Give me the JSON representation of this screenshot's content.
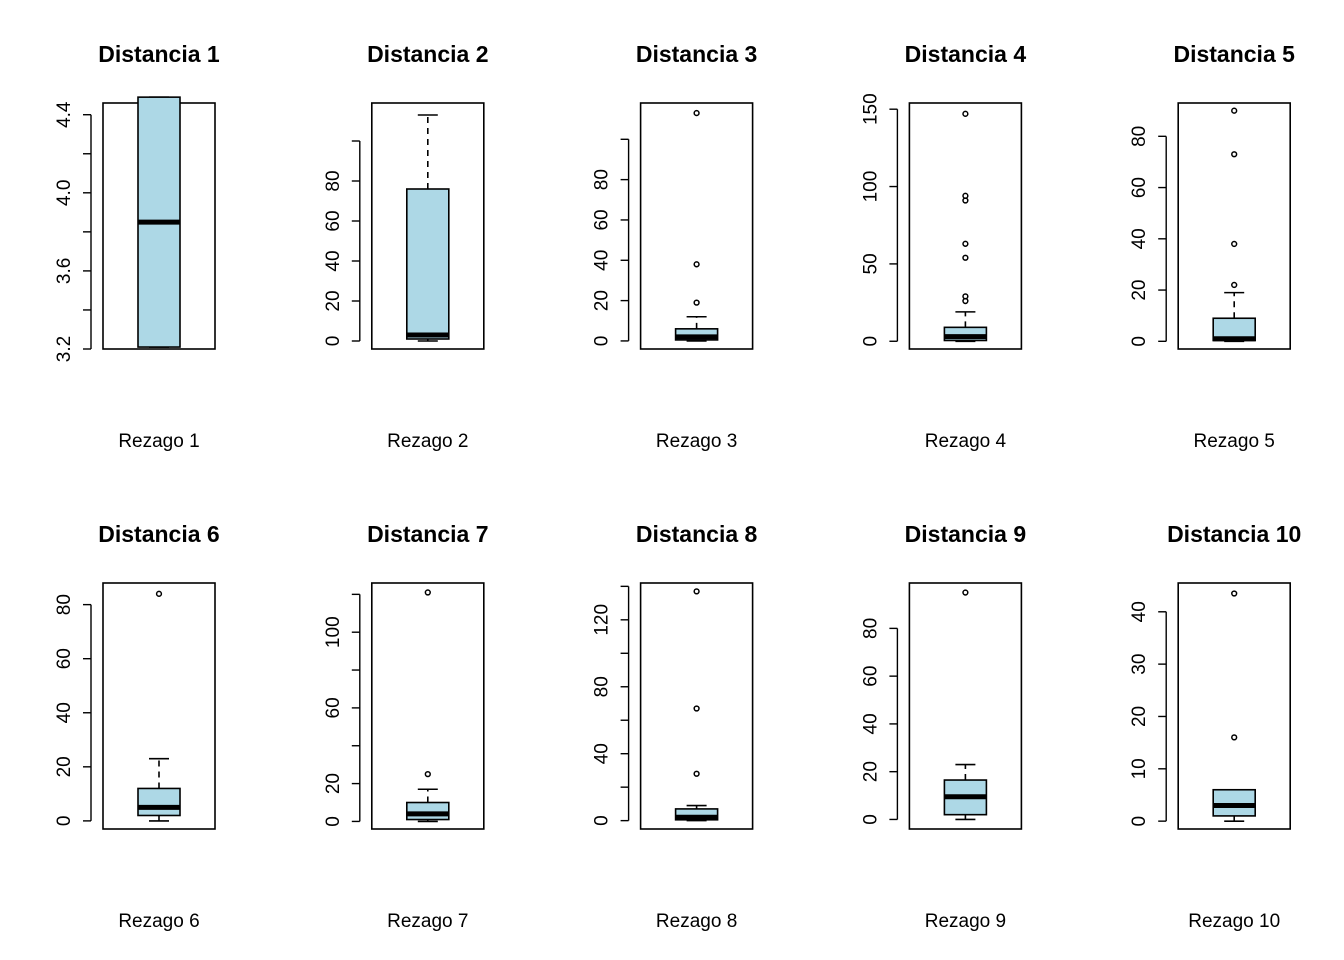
{
  "chart_data": [
    {
      "type": "boxplot",
      "title": "Distancia 1",
      "xlabel": "Rezago 1",
      "ylim": [
        3.2,
        4.46
      ],
      "yticks": [
        3.2,
        3.4,
        3.6,
        3.8,
        4.0,
        4.2,
        4.4
      ],
      "ytick_labels": [
        "3.2",
        "",
        "3.6",
        "",
        "4.0",
        "",
        "4.4"
      ],
      "box": {
        "min": 3.21,
        "q1": 3.21,
        "median": 3.85,
        "q3": 4.49,
        "max": 4.49
      },
      "outliers": []
    },
    {
      "type": "boxplot",
      "title": "Distancia 2",
      "xlabel": "Rezago 2",
      "ylim": [
        -4,
        119
      ],
      "yticks": [
        0,
        20,
        40,
        60,
        80,
        100
      ],
      "ytick_labels": [
        "0",
        "20",
        "40",
        "60",
        "80",
        ""
      ],
      "box": {
        "min": 0,
        "q1": 1,
        "median": 3,
        "q3": 76,
        "max": 113
      },
      "outliers": []
    },
    {
      "type": "boxplot",
      "title": "Distancia 3",
      "xlabel": "Rezago 3",
      "ylim": [
        -4,
        118
      ],
      "yticks": [
        0,
        20,
        40,
        60,
        80,
        100
      ],
      "ytick_labels": [
        "0",
        "20",
        "40",
        "60",
        "80",
        ""
      ],
      "box": {
        "min": 0,
        "q1": 0.5,
        "median": 2,
        "q3": 6,
        "max": 12
      },
      "outliers": [
        19,
        38,
        113
      ]
    },
    {
      "type": "boxplot",
      "title": "Distancia 4",
      "xlabel": "Rezago 4",
      "ylim": [
        -5,
        154
      ],
      "yticks": [
        0,
        50,
        100,
        150
      ],
      "ytick_labels": [
        "0",
        "50",
        "100",
        "150"
      ],
      "box": {
        "min": 0,
        "q1": 0.5,
        "median": 3,
        "q3": 9,
        "max": 19
      },
      "outliers": [
        26,
        29,
        54,
        63,
        91,
        94,
        147
      ]
    },
    {
      "type": "boxplot",
      "title": "Distancia 5",
      "xlabel": "Rezago 5",
      "ylim": [
        -3,
        93
      ],
      "yticks": [
        0,
        20,
        40,
        60,
        80
      ],
      "ytick_labels": [
        "0",
        "20",
        "40",
        "60",
        "80"
      ],
      "box": {
        "min": 0,
        "q1": 0.3,
        "median": 1,
        "q3": 9,
        "max": 19
      },
      "outliers": [
        22,
        38,
        73,
        90
      ]
    },
    {
      "type": "boxplot",
      "title": "Distancia 6",
      "xlabel": "Rezago 6",
      "ylim": [
        -3,
        88
      ],
      "yticks": [
        0,
        20,
        40,
        60,
        80
      ],
      "ytick_labels": [
        "0",
        "20",
        "40",
        "60",
        "80"
      ],
      "box": {
        "min": 0,
        "q1": 2,
        "median": 5,
        "q3": 12,
        "max": 23
      },
      "outliers": [
        84
      ]
    },
    {
      "type": "boxplot",
      "title": "Distancia 7",
      "xlabel": "Rezago 7",
      "ylim": [
        -4,
        126
      ],
      "yticks": [
        0,
        20,
        40,
        60,
        80,
        100,
        120
      ],
      "ytick_labels": [
        "0",
        "20",
        "",
        "60",
        "",
        "100",
        ""
      ],
      "box": {
        "min": 0,
        "q1": 1,
        "median": 4,
        "q3": 10,
        "max": 17
      },
      "outliers": [
        25,
        121
      ]
    },
    {
      "type": "boxplot",
      "title": "Distancia 8",
      "xlabel": "Rezago 8",
      "ylim": [
        -5,
        142
      ],
      "yticks": [
        0,
        20,
        40,
        60,
        80,
        100,
        120,
        140
      ],
      "ytick_labels": [
        "0",
        "",
        "40",
        "",
        "80",
        "",
        "120",
        ""
      ],
      "box": {
        "min": 0,
        "q1": 0.5,
        "median": 2,
        "q3": 7,
        "max": 9
      },
      "outliers": [
        28,
        67,
        137
      ]
    },
    {
      "type": "boxplot",
      "title": "Distancia 9",
      "xlabel": "Rezago 9",
      "ylim": [
        -4,
        99
      ],
      "yticks": [
        0,
        20,
        40,
        60,
        80
      ],
      "ytick_labels": [
        "0",
        "20",
        "40",
        "60",
        "80"
      ],
      "box": {
        "min": 0,
        "q1": 2,
        "median": 9.5,
        "q3": 16.5,
        "max": 23
      },
      "outliers": [
        95
      ]
    },
    {
      "type": "boxplot",
      "title": "Distancia 10",
      "xlabel": "Rezago 10",
      "ylim": [
        -1.5,
        45.5
      ],
      "yticks": [
        0,
        10,
        20,
        30,
        40
      ],
      "ytick_labels": [
        "0",
        "10",
        "20",
        "30",
        "40"
      ],
      "box": {
        "min": 0,
        "q1": 1,
        "median": 3,
        "q3": 6,
        "max": 6
      },
      "outliers": [
        16,
        43.5
      ]
    }
  ],
  "colors": {
    "box_fill": "#ADD8E6",
    "stroke": "#000000"
  }
}
